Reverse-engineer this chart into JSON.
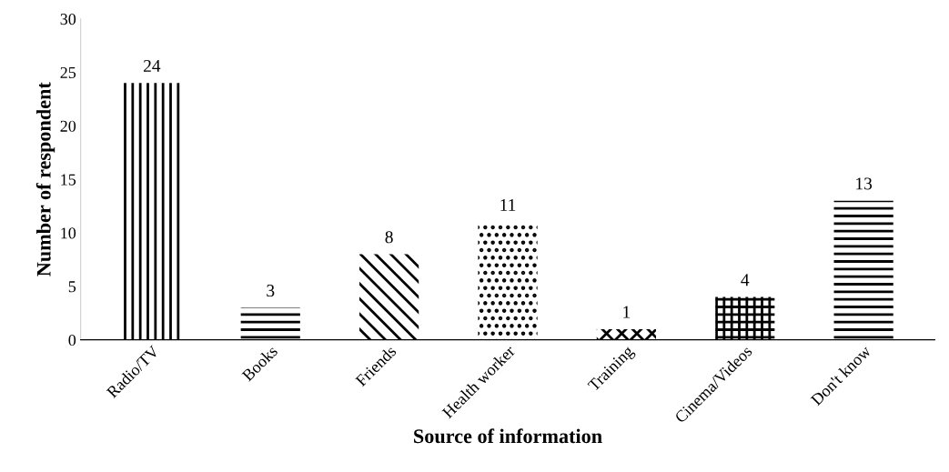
{
  "chart_data": {
    "type": "bar",
    "xlabel": "Source of information",
    "ylabel": "Number of respondent",
    "categories": [
      "Radio/TV",
      "Books",
      "Friends",
      "Health worker",
      "Training",
      "Cinema/Videos",
      "Don't know"
    ],
    "values": [
      24,
      3,
      8,
      11,
      1,
      4,
      13
    ],
    "color": "#000000",
    "ylim": [
      0,
      30
    ],
    "yticks": [
      0,
      5,
      10,
      15,
      20,
      25,
      30
    ],
    "data_labels": true,
    "grid": false
  }
}
